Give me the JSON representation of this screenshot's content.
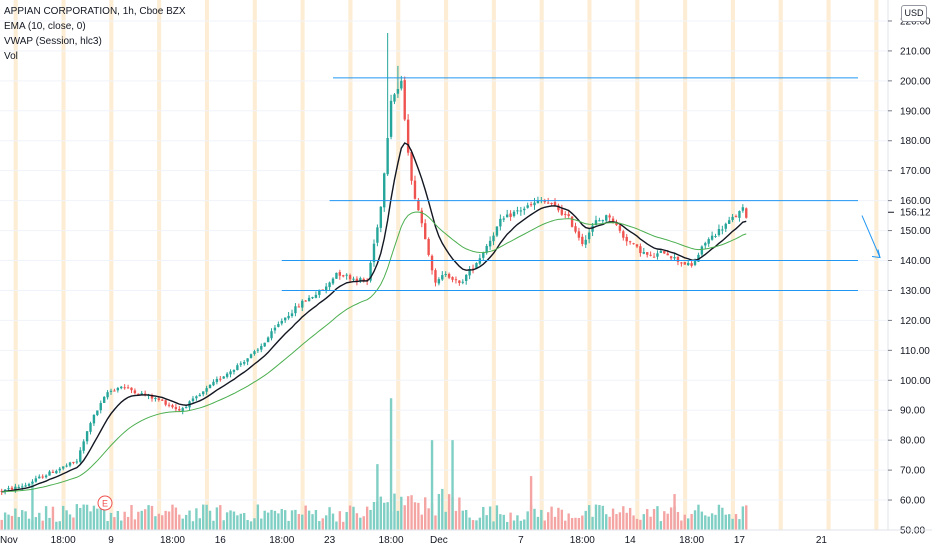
{
  "legend": {
    "symbol": "APPIAN CORPORATION, 1h, Cboe BZX",
    "ema": "EMA (10, close, 0)",
    "vwap": "VWAP (Session, hlc3)",
    "vol": "Vol"
  },
  "currency": "USD",
  "colors": {
    "up": "#26a69a",
    "down": "#ef5350",
    "vol_up": "#7fcfc4",
    "vol_down": "#f4a5a3",
    "ema": "#131722",
    "vwap": "#4caf50",
    "level": "#2196f3",
    "session": "#fbe7c6"
  },
  "chart_data": {
    "type": "candlestick",
    "ylim": [
      50,
      225
    ],
    "y_ticks": [
      50,
      60,
      70,
      80,
      90,
      100,
      110,
      120,
      130,
      140,
      150,
      160,
      170,
      180,
      190,
      200,
      210,
      220
    ],
    "last_price": "156.12",
    "x_ticks": [
      {
        "label": "Nov",
        "i": 0
      },
      {
        "label": "18:00",
        "i": 18
      },
      {
        "label": "9",
        "i": 32
      },
      {
        "label": "18:00",
        "i": 50
      },
      {
        "label": "16",
        "i": 64
      },
      {
        "label": "18:00",
        "i": 82
      },
      {
        "label": "23",
        "i": 96
      },
      {
        "label": "18:00",
        "i": 114
      },
      {
        "label": "Dec",
        "i": 128
      },
      {
        "label": "7",
        "i": 152
      },
      {
        "label": "18:00",
        "i": 170
      },
      {
        "label": "14",
        "i": 184
      },
      {
        "label": "18:00",
        "i": 202
      },
      {
        "label": "17",
        "i": 216
      },
      {
        "label": "21",
        "i": 240
      }
    ],
    "levels": [
      {
        "price": 201,
        "start": 97
      },
      {
        "price": 160,
        "start": 96
      },
      {
        "price": 140,
        "start": 82
      },
      {
        "price": 130,
        "start": 82
      }
    ],
    "path": [
      [
        0,
        63
      ],
      [
        7,
        65
      ],
      [
        12,
        68
      ],
      [
        22,
        73
      ],
      [
        26,
        86
      ],
      [
        31,
        96
      ],
      [
        35,
        98
      ],
      [
        42,
        95
      ],
      [
        47,
        93
      ],
      [
        52,
        90
      ],
      [
        58,
        95
      ],
      [
        63,
        100
      ],
      [
        68,
        104
      ],
      [
        75,
        110
      ],
      [
        82,
        120
      ],
      [
        88,
        126
      ],
      [
        95,
        131
      ],
      [
        98,
        136
      ],
      [
        103,
        134
      ],
      [
        107,
        133
      ],
      [
        111,
        158
      ],
      [
        114,
        194
      ],
      [
        117,
        199
      ],
      [
        120,
        166
      ],
      [
        124,
        148
      ],
      [
        127,
        132
      ],
      [
        130,
        136
      ],
      [
        134,
        132
      ],
      [
        140,
        141
      ],
      [
        146,
        153
      ],
      [
        150,
        156
      ],
      [
        154,
        158
      ],
      [
        158,
        160
      ],
      [
        162,
        158
      ],
      [
        166,
        154
      ],
      [
        170,
        146
      ],
      [
        174,
        153
      ],
      [
        178,
        155
      ],
      [
        182,
        148
      ],
      [
        186,
        144
      ],
      [
        190,
        141
      ],
      [
        194,
        143
      ],
      [
        198,
        140
      ],
      [
        202,
        138
      ],
      [
        206,
        146
      ],
      [
        212,
        152
      ],
      [
        217,
        157
      ],
      [
        218,
        155
      ]
    ],
    "volume_spikes": [
      [
        114,
        94
      ],
      [
        110,
        72
      ],
      [
        126,
        80
      ],
      [
        132,
        80
      ],
      [
        155,
        68
      ],
      [
        197,
        62
      ]
    ]
  }
}
